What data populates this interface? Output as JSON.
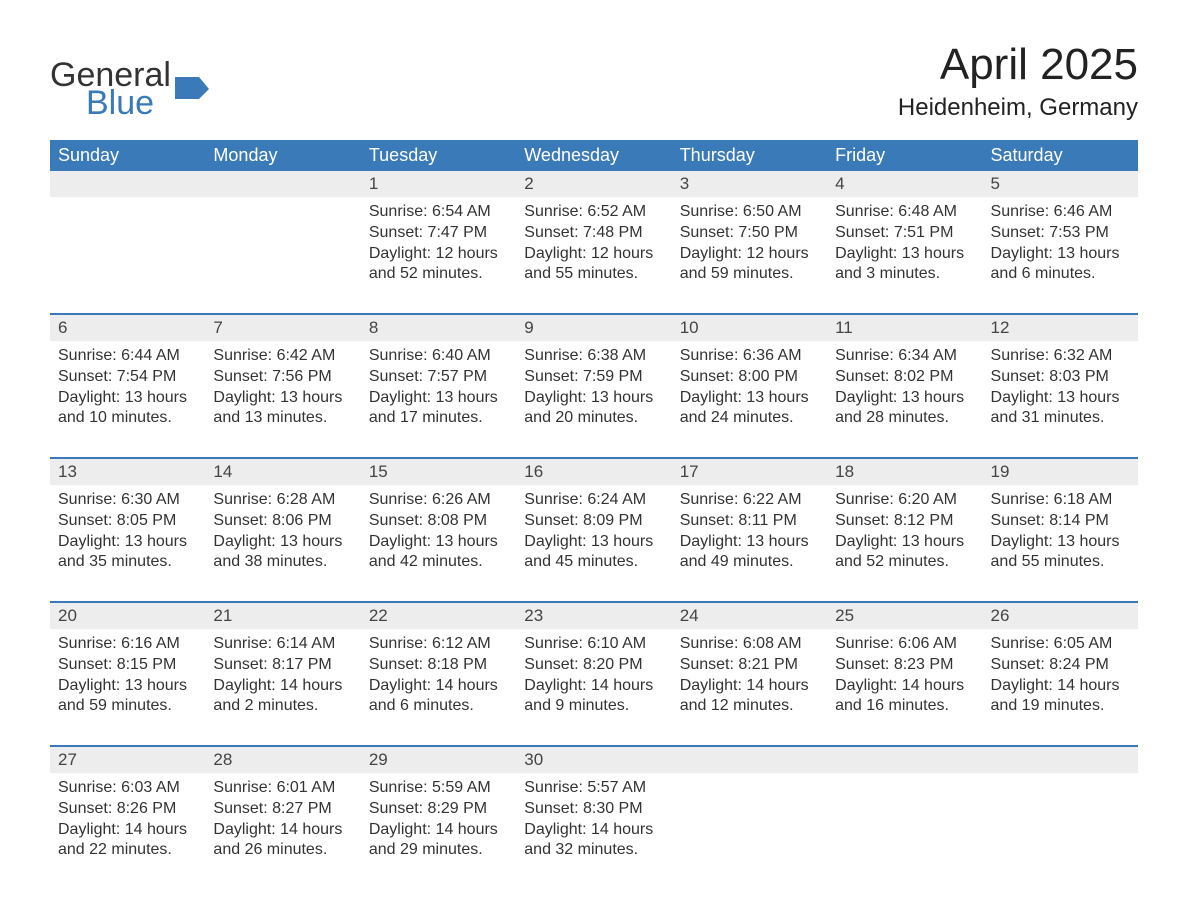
{
  "logo": {
    "text1": "General",
    "text2": "Blue"
  },
  "title": "April 2025",
  "subtitle": "Heidenheim, Germany",
  "colors": {
    "header_bg": "#3a7ab8",
    "header_text": "#ffffff",
    "daynum_bg": "#ededed",
    "body_text": "#333333",
    "week_border": "#3a7ab8",
    "logo_blue": "#3a7ab8"
  },
  "fonts": {
    "title_size": 44,
    "subtitle_size": 24,
    "dow_size": 18,
    "daynum_size": 17,
    "body_size": 16
  },
  "dow": [
    "Sunday",
    "Monday",
    "Tuesday",
    "Wednesday",
    "Thursday",
    "Friday",
    "Saturday"
  ],
  "weeks": [
    [
      {
        "num": "",
        "sunrise": "",
        "sunset": "",
        "daylight": ""
      },
      {
        "num": "",
        "sunrise": "",
        "sunset": "",
        "daylight": ""
      },
      {
        "num": "1",
        "sunrise": "Sunrise: 6:54 AM",
        "sunset": "Sunset: 7:47 PM",
        "daylight": "Daylight: 12 hours and 52 minutes."
      },
      {
        "num": "2",
        "sunrise": "Sunrise: 6:52 AM",
        "sunset": "Sunset: 7:48 PM",
        "daylight": "Daylight: 12 hours and 55 minutes."
      },
      {
        "num": "3",
        "sunrise": "Sunrise: 6:50 AM",
        "sunset": "Sunset: 7:50 PM",
        "daylight": "Daylight: 12 hours and 59 minutes."
      },
      {
        "num": "4",
        "sunrise": "Sunrise: 6:48 AM",
        "sunset": "Sunset: 7:51 PM",
        "daylight": "Daylight: 13 hours and 3 minutes."
      },
      {
        "num": "5",
        "sunrise": "Sunrise: 6:46 AM",
        "sunset": "Sunset: 7:53 PM",
        "daylight": "Daylight: 13 hours and 6 minutes."
      }
    ],
    [
      {
        "num": "6",
        "sunrise": "Sunrise: 6:44 AM",
        "sunset": "Sunset: 7:54 PM",
        "daylight": "Daylight: 13 hours and 10 minutes."
      },
      {
        "num": "7",
        "sunrise": "Sunrise: 6:42 AM",
        "sunset": "Sunset: 7:56 PM",
        "daylight": "Daylight: 13 hours and 13 minutes."
      },
      {
        "num": "8",
        "sunrise": "Sunrise: 6:40 AM",
        "sunset": "Sunset: 7:57 PM",
        "daylight": "Daylight: 13 hours and 17 minutes."
      },
      {
        "num": "9",
        "sunrise": "Sunrise: 6:38 AM",
        "sunset": "Sunset: 7:59 PM",
        "daylight": "Daylight: 13 hours and 20 minutes."
      },
      {
        "num": "10",
        "sunrise": "Sunrise: 6:36 AM",
        "sunset": "Sunset: 8:00 PM",
        "daylight": "Daylight: 13 hours and 24 minutes."
      },
      {
        "num": "11",
        "sunrise": "Sunrise: 6:34 AM",
        "sunset": "Sunset: 8:02 PM",
        "daylight": "Daylight: 13 hours and 28 minutes."
      },
      {
        "num": "12",
        "sunrise": "Sunrise: 6:32 AM",
        "sunset": "Sunset: 8:03 PM",
        "daylight": "Daylight: 13 hours and 31 minutes."
      }
    ],
    [
      {
        "num": "13",
        "sunrise": "Sunrise: 6:30 AM",
        "sunset": "Sunset: 8:05 PM",
        "daylight": "Daylight: 13 hours and 35 minutes."
      },
      {
        "num": "14",
        "sunrise": "Sunrise: 6:28 AM",
        "sunset": "Sunset: 8:06 PM",
        "daylight": "Daylight: 13 hours and 38 minutes."
      },
      {
        "num": "15",
        "sunrise": "Sunrise: 6:26 AM",
        "sunset": "Sunset: 8:08 PM",
        "daylight": "Daylight: 13 hours and 42 minutes."
      },
      {
        "num": "16",
        "sunrise": "Sunrise: 6:24 AM",
        "sunset": "Sunset: 8:09 PM",
        "daylight": "Daylight: 13 hours and 45 minutes."
      },
      {
        "num": "17",
        "sunrise": "Sunrise: 6:22 AM",
        "sunset": "Sunset: 8:11 PM",
        "daylight": "Daylight: 13 hours and 49 minutes."
      },
      {
        "num": "18",
        "sunrise": "Sunrise: 6:20 AM",
        "sunset": "Sunset: 8:12 PM",
        "daylight": "Daylight: 13 hours and 52 minutes."
      },
      {
        "num": "19",
        "sunrise": "Sunrise: 6:18 AM",
        "sunset": "Sunset: 8:14 PM",
        "daylight": "Daylight: 13 hours and 55 minutes."
      }
    ],
    [
      {
        "num": "20",
        "sunrise": "Sunrise: 6:16 AM",
        "sunset": "Sunset: 8:15 PM",
        "daylight": "Daylight: 13 hours and 59 minutes."
      },
      {
        "num": "21",
        "sunrise": "Sunrise: 6:14 AM",
        "sunset": "Sunset: 8:17 PM",
        "daylight": "Daylight: 14 hours and 2 minutes."
      },
      {
        "num": "22",
        "sunrise": "Sunrise: 6:12 AM",
        "sunset": "Sunset: 8:18 PM",
        "daylight": "Daylight: 14 hours and 6 minutes."
      },
      {
        "num": "23",
        "sunrise": "Sunrise: 6:10 AM",
        "sunset": "Sunset: 8:20 PM",
        "daylight": "Daylight: 14 hours and 9 minutes."
      },
      {
        "num": "24",
        "sunrise": "Sunrise: 6:08 AM",
        "sunset": "Sunset: 8:21 PM",
        "daylight": "Daylight: 14 hours and 12 minutes."
      },
      {
        "num": "25",
        "sunrise": "Sunrise: 6:06 AM",
        "sunset": "Sunset: 8:23 PM",
        "daylight": "Daylight: 14 hours and 16 minutes."
      },
      {
        "num": "26",
        "sunrise": "Sunrise: 6:05 AM",
        "sunset": "Sunset: 8:24 PM",
        "daylight": "Daylight: 14 hours and 19 minutes."
      }
    ],
    [
      {
        "num": "27",
        "sunrise": "Sunrise: 6:03 AM",
        "sunset": "Sunset: 8:26 PM",
        "daylight": "Daylight: 14 hours and 22 minutes."
      },
      {
        "num": "28",
        "sunrise": "Sunrise: 6:01 AM",
        "sunset": "Sunset: 8:27 PM",
        "daylight": "Daylight: 14 hours and 26 minutes."
      },
      {
        "num": "29",
        "sunrise": "Sunrise: 5:59 AM",
        "sunset": "Sunset: 8:29 PM",
        "daylight": "Daylight: 14 hours and 29 minutes."
      },
      {
        "num": "30",
        "sunrise": "Sunrise: 5:57 AM",
        "sunset": "Sunset: 8:30 PM",
        "daylight": "Daylight: 14 hours and 32 minutes."
      },
      {
        "num": "",
        "sunrise": "",
        "sunset": "",
        "daylight": ""
      },
      {
        "num": "",
        "sunrise": "",
        "sunset": "",
        "daylight": ""
      },
      {
        "num": "",
        "sunrise": "",
        "sunset": "",
        "daylight": ""
      }
    ]
  ]
}
